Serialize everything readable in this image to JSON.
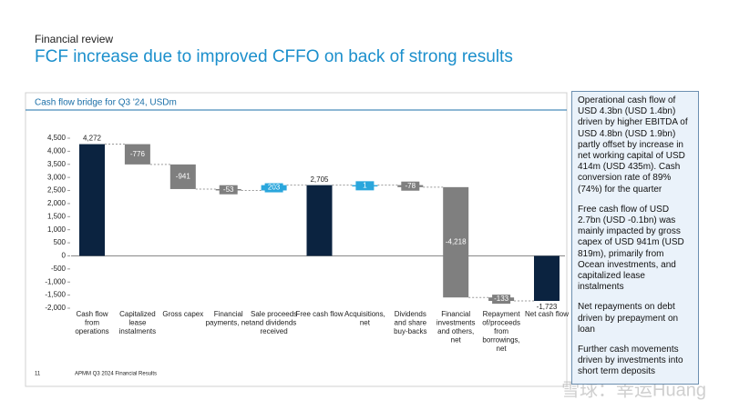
{
  "header": {
    "section": "Financial review",
    "title": "FCF increase due to improved CFFO on back of strong results"
  },
  "chart_data": {
    "type": "waterfall",
    "title": "Cash flow bridge for Q3 '24, USDm",
    "categories": [
      "Cash flow\nfrom\noperations",
      "Capitalized\nlease\ninstalments",
      "Gross capex",
      "Financial\npayments, net",
      "Sale proceeds\nand dividends\nreceived",
      "Free cash flow",
      "Acquisitions,\nnet",
      "Dividends\nand share\nbuy-backs",
      "Financial\ninvestments\nand others,\nnet",
      "Repayment\nof/proceeds\nfrom\nborrowings,\nnet",
      "Net cash flow"
    ],
    "values": [
      4272,
      -776,
      -941,
      -53,
      203,
      2705,
      1,
      -78,
      -4218,
      -133,
      -1723
    ],
    "value_labels": [
      "4,272",
      "-776",
      "-941",
      "-53",
      "203",
      "2,705",
      "1",
      "-78",
      "-4,218",
      "-133",
      "-1,723"
    ],
    "is_total": [
      true,
      false,
      false,
      false,
      false,
      true,
      false,
      false,
      false,
      false,
      true
    ],
    "colors": [
      "#0b2340",
      "#7f7f7f",
      "#7f7f7f",
      "#7f7f7f",
      "#2aa6dc",
      "#0b2340",
      "#2aa6dc",
      "#7f7f7f",
      "#7f7f7f",
      "#7f7f7f",
      "#0b2340"
    ],
    "ylim": [
      -2000,
      4500
    ],
    "yticks": [
      {
        "value": -2000,
        "label": "-2,000"
      },
      {
        "value": -1500,
        "label": "-1,500"
      },
      {
        "value": -1000,
        "label": "-1,000"
      },
      -500,
      0,
      500,
      {
        "value": 1000,
        "label": "1,000"
      },
      {
        "value": 1500,
        "label": "1,500"
      },
      {
        "value": 2000,
        "label": "2,000"
      },
      {
        "value": 2500,
        "label": "2,500"
      },
      {
        "value": 3000,
        "label": "3,000"
      },
      {
        "value": 3500,
        "label": "3,500"
      },
      {
        "value": 4000,
        "label": "4,000"
      },
      {
        "value": 4500,
        "label": "4,500"
      }
    ]
  },
  "side_panel": [
    "Operational cash flow of USD 4.3bn (USD 1.4bn) driven by higher EBITDA of USD 4.8bn (USD 1.9bn) partly offset by increase in net working capital of USD 414m (USD 435m). Cash conversion rate of 89% (74%) for the quarter",
    "Free cash flow of USD 2.7bn (USD -0.1bn) was mainly impacted by gross capex of USD 941m (USD 819m), primarily from Ocean investments, and capitalized lease instalments",
    "Net repayments on debt driven by prepayment on loan",
    "Further cash movements driven by investments into short term deposits"
  ],
  "footer": {
    "page": "11",
    "text": "APMM Q3 2024 Financial Results"
  },
  "watermark": "雪球：幸运Huang"
}
